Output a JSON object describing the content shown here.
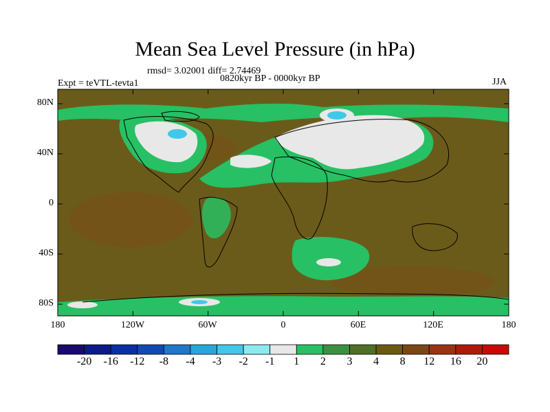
{
  "title": "Mean Sea Level Pressure (in hPa)",
  "stats": "rmsd= 3.02001 diff= 2.74469",
  "period": "0820kyr BP - 0000kyr BP",
  "experiment": "Expt = teVTL-tevta1",
  "season": "JJA",
  "lat_labels": [
    "80N",
    "40N",
    "0",
    "40S",
    "80S"
  ],
  "lon_labels": [
    "180",
    "120W",
    "60W",
    "0",
    "60E",
    "120E",
    "180"
  ],
  "colorbar": {
    "labels": [
      "-20",
      "-16",
      "-12",
      "-8",
      "-4",
      "-3",
      "-2",
      "-1",
      "1",
      "2",
      "3",
      "4",
      "8",
      "12",
      "16",
      "20"
    ],
    "colors": [
      "#1a0a6e",
      "#0c1a8c",
      "#0a2ea8",
      "#1448b8",
      "#1f78c8",
      "#25a8d8",
      "#40c8e8",
      "#8ee8f0",
      "#e8e8e8",
      "#28c064",
      "#3c9040",
      "#507028",
      "#6a5a14",
      "#7a4818",
      "#983414",
      "#b01a0a",
      "#c80a0a"
    ]
  },
  "colors": {
    "background": "#6b5b1a",
    "plus_one": "#e8e8e8",
    "plus_two": "#28c064",
    "plus_three": "#3c9040",
    "plus_eight": "#8a4a18"
  }
}
